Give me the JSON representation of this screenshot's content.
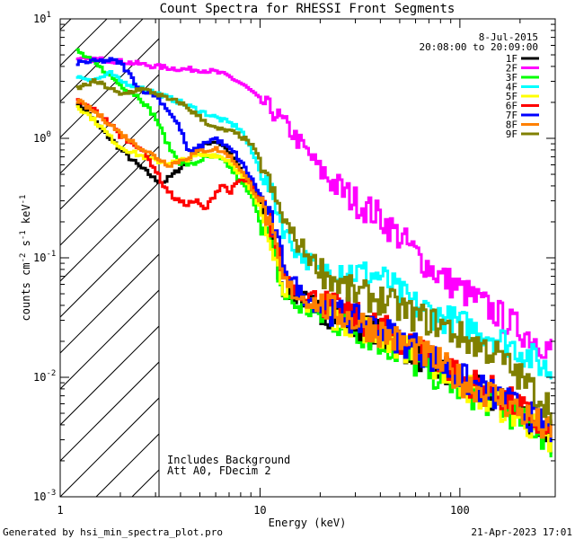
{
  "chart_data": {
    "type": "line",
    "title": "Count Spectra for RHESSI Front Segments",
    "xlabel": "Energy (keV)",
    "ylabel": "counts cm-2 s-1 keV-1",
    "xscale": "log",
    "yscale": "log",
    "xlim": [
      1,
      300
    ],
    "ylim": [
      0.001,
      10
    ],
    "x_ticks": [
      {
        "value": 1,
        "label": "1"
      },
      {
        "value": 10,
        "label": "10"
      },
      {
        "value": 100,
        "label": "100"
      }
    ],
    "y_ticks": [
      {
        "value": 10,
        "base": "10",
        "exp": "1"
      },
      {
        "value": 1,
        "base": "10",
        "exp": "0"
      },
      {
        "value": 0.1,
        "base": "10",
        "exp": "-1"
      },
      {
        "value": 0.01,
        "base": "10",
        "exp": "-2"
      },
      {
        "value": 0.001,
        "base": "10",
        "exp": "-3"
      }
    ],
    "date": "8-Jul-2015",
    "time_range": "20:08:00 to 20:09:00",
    "legend_position": "top-right",
    "hatched_region": [
      1,
      3
    ],
    "annotations": [
      "Includes Background",
      "Att A0, FDecim 2"
    ],
    "series": [
      {
        "name": "1F",
        "color": "#000000",
        "points": [
          [
            1.2,
            2.05
          ],
          [
            1.4,
            1.6
          ],
          [
            1.6,
            1.2
          ],
          [
            1.8,
            0.98
          ],
          [
            2.0,
            0.82
          ],
          [
            2.2,
            0.7
          ],
          [
            2.5,
            0.58
          ],
          [
            2.8,
            0.5
          ],
          [
            3.0,
            0.45
          ],
          [
            3.3,
            0.43
          ],
          [
            3.7,
            0.5
          ],
          [
            4.2,
            0.62
          ],
          [
            4.8,
            0.78
          ],
          [
            5.5,
            0.92
          ],
          [
            6.0,
            0.95
          ],
          [
            6.5,
            0.88
          ],
          [
            7.2,
            0.72
          ],
          [
            8.0,
            0.55
          ],
          [
            9.0,
            0.4
          ],
          [
            10,
            0.3
          ],
          [
            11,
            0.2
          ],
          [
            12,
            0.1
          ],
          [
            13,
            0.055
          ],
          [
            15,
            0.048
          ],
          [
            18,
            0.042
          ],
          [
            22,
            0.035
          ],
          [
            30,
            0.028
          ],
          [
            40,
            0.022
          ],
          [
            60,
            0.016
          ],
          [
            80,
            0.011
          ],
          [
            100,
            0.009
          ],
          [
            150,
            0.0065
          ],
          [
            200,
            0.005
          ],
          [
            250,
            0.0038
          ],
          [
            290,
            0.003
          ]
        ]
      },
      {
        "name": "2F",
        "color": "#ff00ff",
        "points": [
          [
            1.2,
            4.5
          ],
          [
            1.5,
            4.6
          ],
          [
            2.0,
            4.4
          ],
          [
            2.5,
            4.2
          ],
          [
            3.0,
            4.0
          ],
          [
            4.0,
            3.8
          ],
          [
            5.0,
            3.75
          ],
          [
            6.0,
            3.6
          ],
          [
            7.0,
            3.3
          ],
          [
            8.0,
            2.9
          ],
          [
            9.0,
            2.5
          ],
          [
            10,
            2.1
          ],
          [
            12,
            1.6
          ],
          [
            14,
            1.2
          ],
          [
            16,
            0.9
          ],
          [
            18,
            0.7
          ],
          [
            20,
            0.55
          ],
          [
            25,
            0.38
          ],
          [
            30,
            0.3
          ],
          [
            40,
            0.22
          ],
          [
            50,
            0.15
          ],
          [
            60,
            0.11
          ],
          [
            70,
            0.085
          ],
          [
            80,
            0.07
          ],
          [
            100,
            0.055
          ],
          [
            150,
            0.035
          ],
          [
            200,
            0.025
          ],
          [
            250,
            0.02
          ],
          [
            290,
            0.017
          ]
        ]
      },
      {
        "name": "3F",
        "color": "#00ff00",
        "points": [
          [
            1.2,
            5.5
          ],
          [
            1.5,
            4.2
          ],
          [
            1.8,
            3.3
          ],
          [
            2.0,
            2.8
          ],
          [
            2.5,
            2.2
          ],
          [
            3.0,
            1.5
          ],
          [
            3.5,
            0.85
          ],
          [
            4.0,
            0.62
          ],
          [
            4.6,
            0.6
          ],
          [
            5.2,
            0.68
          ],
          [
            6.0,
            0.7
          ],
          [
            6.8,
            0.62
          ],
          [
            7.5,
            0.5
          ],
          [
            8.5,
            0.38
          ],
          [
            9.5,
            0.28
          ],
          [
            10,
            0.2
          ],
          [
            11,
            0.15
          ],
          [
            12,
            0.09
          ],
          [
            13,
            0.05
          ],
          [
            15,
            0.04
          ],
          [
            20,
            0.033
          ],
          [
            30,
            0.025
          ],
          [
            40,
            0.02
          ],
          [
            60,
            0.013
          ],
          [
            80,
            0.01
          ],
          [
            100,
            0.008
          ],
          [
            150,
            0.006
          ],
          [
            200,
            0.0045
          ],
          [
            250,
            0.0035
          ],
          [
            290,
            0.0028
          ]
        ]
      },
      {
        "name": "4F",
        "color": "#00ffff",
        "points": [
          [
            1.2,
            3.3
          ],
          [
            1.5,
            3.1
          ],
          [
            1.8,
            3.5
          ],
          [
            2.0,
            3.0
          ],
          [
            2.5,
            2.7
          ],
          [
            3.0,
            2.4
          ],
          [
            4.0,
            2.0
          ],
          [
            5.0,
            1.7
          ],
          [
            6.0,
            1.5
          ],
          [
            7.0,
            1.35
          ],
          [
            8.0,
            1.2
          ],
          [
            9.0,
            0.8
          ],
          [
            10,
            0.55
          ],
          [
            11,
            0.4
          ],
          [
            12,
            0.28
          ],
          [
            13,
            0.18
          ],
          [
            15,
            0.12
          ],
          [
            18,
            0.09
          ],
          [
            20,
            0.075
          ],
          [
            25,
            0.085
          ],
          [
            30,
            0.075
          ],
          [
            40,
            0.07
          ],
          [
            50,
            0.05
          ],
          [
            60,
            0.04
          ],
          [
            80,
            0.032
          ],
          [
            100,
            0.028
          ],
          [
            150,
            0.022
          ],
          [
            200,
            0.017
          ],
          [
            250,
            0.013
          ],
          [
            290,
            0.011
          ]
        ]
      },
      {
        "name": "5F",
        "color": "#ffff00",
        "points": [
          [
            1.2,
            1.9
          ],
          [
            1.4,
            1.55
          ],
          [
            1.6,
            1.25
          ],
          [
            1.8,
            1.0
          ],
          [
            2.0,
            0.85
          ],
          [
            2.5,
            0.72
          ],
          [
            3.0,
            0.65
          ],
          [
            3.5,
            0.62
          ],
          [
            4.0,
            0.65
          ],
          [
            5.0,
            0.72
          ],
          [
            6.0,
            0.73
          ],
          [
            7.0,
            0.65
          ],
          [
            8.0,
            0.5
          ],
          [
            9.0,
            0.36
          ],
          [
            10,
            0.26
          ],
          [
            11,
            0.17
          ],
          [
            12,
            0.1
          ],
          [
            13,
            0.06
          ],
          [
            15,
            0.046
          ],
          [
            20,
            0.038
          ],
          [
            30,
            0.028
          ],
          [
            40,
            0.023
          ],
          [
            60,
            0.016
          ],
          [
            80,
            0.012
          ],
          [
            100,
            0.009
          ],
          [
            150,
            0.006
          ],
          [
            200,
            0.0047
          ],
          [
            250,
            0.0035
          ],
          [
            290,
            0.0025
          ]
        ]
      },
      {
        "name": "6F",
        "color": "#ff0000",
        "points": [
          [
            1.2,
            2.1
          ],
          [
            1.5,
            1.7
          ],
          [
            1.8,
            1.3
          ],
          [
            2.0,
            1.05
          ],
          [
            2.5,
            0.85
          ],
          [
            3.0,
            0.55
          ],
          [
            3.3,
            0.4
          ],
          [
            3.7,
            0.32
          ],
          [
            4.2,
            0.28
          ],
          [
            4.8,
            0.3
          ],
          [
            5.3,
            0.25
          ],
          [
            6.0,
            0.35
          ],
          [
            6.5,
            0.42
          ],
          [
            7.0,
            0.35
          ],
          [
            8.0,
            0.45
          ],
          [
            9.0,
            0.42
          ],
          [
            10,
            0.32
          ],
          [
            11,
            0.22
          ],
          [
            12,
            0.13
          ],
          [
            13,
            0.08
          ],
          [
            15,
            0.055
          ],
          [
            18,
            0.048
          ],
          [
            22,
            0.04
          ],
          [
            30,
            0.032
          ],
          [
            40,
            0.026
          ],
          [
            60,
            0.018
          ],
          [
            80,
            0.014
          ],
          [
            100,
            0.01
          ],
          [
            150,
            0.0075
          ],
          [
            200,
            0.0055
          ],
          [
            250,
            0.004
          ],
          [
            290,
            0.0032
          ]
        ]
      },
      {
        "name": "7F",
        "color": "#0000ff",
        "points": [
          [
            1.2,
            4.3
          ],
          [
            1.5,
            4.4
          ],
          [
            1.8,
            4.5
          ],
          [
            2.0,
            4.3
          ],
          [
            2.2,
            3.5
          ],
          [
            2.5,
            2.6
          ],
          [
            3.0,
            2.3
          ],
          [
            3.5,
            1.7
          ],
          [
            4.0,
            1.2
          ],
          [
            4.4,
            0.75
          ],
          [
            5.0,
            0.85
          ],
          [
            5.5,
            0.95
          ],
          [
            6.0,
            1.0
          ],
          [
            6.5,
            0.9
          ],
          [
            7.5,
            0.75
          ],
          [
            8.5,
            0.55
          ],
          [
            9.5,
            0.4
          ],
          [
            10.5,
            0.28
          ],
          [
            11.5,
            0.2
          ],
          [
            12.5,
            0.12
          ],
          [
            14,
            0.07
          ],
          [
            16,
            0.05
          ],
          [
            20,
            0.04
          ],
          [
            30,
            0.03
          ],
          [
            40,
            0.025
          ],
          [
            60,
            0.018
          ],
          [
            80,
            0.013
          ],
          [
            100,
            0.01
          ],
          [
            150,
            0.007
          ],
          [
            200,
            0.0055
          ],
          [
            250,
            0.0042
          ],
          [
            290,
            0.0035
          ]
        ]
      },
      {
        "name": "8F",
        "color": "#ff8000",
        "points": [
          [
            1.2,
            2.1
          ],
          [
            1.5,
            1.65
          ],
          [
            1.8,
            1.3
          ],
          [
            2.0,
            1.1
          ],
          [
            2.5,
            0.85
          ],
          [
            3.0,
            0.7
          ],
          [
            3.5,
            0.6
          ],
          [
            4.0,
            0.65
          ],
          [
            5.0,
            0.78
          ],
          [
            6.0,
            0.82
          ],
          [
            7.0,
            0.72
          ],
          [
            8.0,
            0.55
          ],
          [
            9.0,
            0.4
          ],
          [
            10,
            0.3
          ],
          [
            11,
            0.2
          ],
          [
            12,
            0.12
          ],
          [
            13,
            0.065
          ],
          [
            15,
            0.05
          ],
          [
            20,
            0.04
          ],
          [
            30,
            0.03
          ],
          [
            40,
            0.024
          ],
          [
            60,
            0.017
          ],
          [
            80,
            0.013
          ],
          [
            100,
            0.0095
          ],
          [
            150,
            0.007
          ],
          [
            200,
            0.0052
          ],
          [
            250,
            0.004
          ],
          [
            290,
            0.0032
          ]
        ]
      },
      {
        "name": "9F",
        "color": "#808000",
        "points": [
          [
            1.2,
            2.6
          ],
          [
            1.5,
            3.0
          ],
          [
            1.8,
            2.6
          ],
          [
            2.0,
            2.3
          ],
          [
            2.5,
            2.6
          ],
          [
            3.0,
            2.4
          ],
          [
            3.5,
            2.1
          ],
          [
            4.0,
            2.0
          ],
          [
            5.0,
            1.5
          ],
          [
            6.0,
            1.2
          ],
          [
            7.0,
            1.15
          ],
          [
            8.0,
            1.05
          ],
          [
            9.0,
            0.9
          ],
          [
            10,
            0.65
          ],
          [
            11,
            0.45
          ],
          [
            12,
            0.3
          ],
          [
            13,
            0.22
          ],
          [
            15,
            0.14
          ],
          [
            18,
            0.1
          ],
          [
            20,
            0.08
          ],
          [
            25,
            0.06
          ],
          [
            30,
            0.05
          ],
          [
            40,
            0.045
          ],
          [
            50,
            0.038
          ],
          [
            60,
            0.032
          ],
          [
            80,
            0.028
          ],
          [
            100,
            0.022
          ],
          [
            150,
            0.016
          ],
          [
            200,
            0.01
          ],
          [
            250,
            0.007
          ],
          [
            290,
            0.0055
          ]
        ]
      }
    ]
  },
  "footer": {
    "generated_by": "Generated by hsi_min_spectra_plot.pro",
    "timestamp": "21-Apr-2023 17:01"
  }
}
